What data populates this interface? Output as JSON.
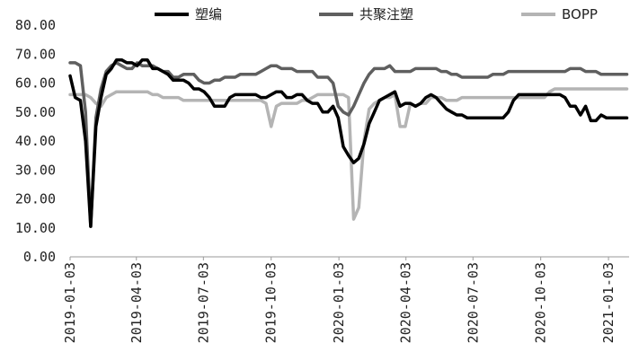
{
  "chart_data": {
    "type": "line",
    "title": "",
    "xlabel": "",
    "ylabel": "",
    "ylim": [
      0,
      80
    ],
    "yticks": [
      "0.00",
      "10.00",
      "20.00",
      "30.00",
      "40.00",
      "50.00",
      "60.00",
      "70.00",
      "80.00"
    ],
    "xticks": [
      "2019-01-03",
      "2019-04-03",
      "2019-07-03",
      "2019-10-03",
      "2020-01-03",
      "2020-04-03",
      "2020-07-03",
      "2020-10-03",
      "2021-01-03"
    ],
    "x_range": [
      "2019-01-03",
      "2021-01-31"
    ],
    "grid": false,
    "legend_position": "top",
    "x": [
      "2019-01-03",
      "2019-01-10",
      "2019-01-17",
      "2019-01-24",
      "2019-01-31",
      "2019-02-07",
      "2019-02-14",
      "2019-02-21",
      "2019-02-28",
      "2019-03-07",
      "2019-03-14",
      "2019-03-21",
      "2019-03-28",
      "2019-04-04",
      "2019-04-11",
      "2019-04-18",
      "2019-04-25",
      "2019-05-02",
      "2019-05-09",
      "2019-05-16",
      "2019-05-23",
      "2019-05-30",
      "2019-06-06",
      "2019-06-13",
      "2019-06-20",
      "2019-06-27",
      "2019-07-04",
      "2019-07-11",
      "2019-07-18",
      "2019-07-25",
      "2019-08-01",
      "2019-08-08",
      "2019-08-15",
      "2019-08-22",
      "2019-08-29",
      "2019-09-05",
      "2019-09-12",
      "2019-09-19",
      "2019-09-26",
      "2019-10-03",
      "2019-10-10",
      "2019-10-17",
      "2019-10-24",
      "2019-10-31",
      "2019-11-07",
      "2019-11-14",
      "2019-11-21",
      "2019-11-28",
      "2019-12-05",
      "2019-12-12",
      "2019-12-19",
      "2019-12-26",
      "2020-01-02",
      "2020-01-09",
      "2020-01-16",
      "2020-01-23",
      "2020-01-30",
      "2020-02-06",
      "2020-02-13",
      "2020-02-20",
      "2020-02-27",
      "2020-03-05",
      "2020-03-12",
      "2020-03-19",
      "2020-03-26",
      "2020-04-02",
      "2020-04-09",
      "2020-04-16",
      "2020-04-23",
      "2020-04-30",
      "2020-05-07",
      "2020-05-14",
      "2020-05-21",
      "2020-05-28",
      "2020-06-04",
      "2020-06-11",
      "2020-06-18",
      "2020-06-25",
      "2020-07-02",
      "2020-07-09",
      "2020-07-16",
      "2020-07-23",
      "2020-07-30",
      "2020-08-06",
      "2020-08-13",
      "2020-08-20",
      "2020-08-27",
      "2020-09-03",
      "2020-09-10",
      "2020-09-17",
      "2020-09-24",
      "2020-10-01",
      "2020-10-08",
      "2020-10-15",
      "2020-10-22",
      "2020-10-29",
      "2020-11-05",
      "2020-11-12",
      "2020-11-19",
      "2020-11-26",
      "2020-12-03",
      "2020-12-10",
      "2020-12-17",
      "2020-12-24",
      "2020-12-31",
      "2021-01-07",
      "2021-01-14",
      "2021-01-21",
      "2021-01-28"
    ],
    "series": [
      {
        "name": "塑编",
        "color": "#000000",
        "values": [
          62.5,
          55,
          54,
          40,
          10.5,
          45,
          55,
          63,
          65,
          68,
          68,
          67,
          67,
          66,
          68,
          68,
          65,
          65,
          64,
          63,
          61,
          61,
          61,
          60,
          58,
          58,
          57,
          55,
          52,
          52,
          52,
          55,
          56,
          56,
          56,
          56,
          56,
          55,
          55,
          56,
          57,
          57,
          55,
          55,
          56,
          56,
          54,
          53,
          53,
          50,
          50,
          52,
          48,
          38,
          35,
          32.5,
          34,
          39,
          46,
          50,
          54,
          55,
          56,
          57,
          52,
          53,
          53,
          52,
          53,
          55,
          56,
          55,
          53,
          51,
          50,
          49,
          49,
          48,
          48,
          48,
          48,
          48,
          48,
          48,
          48,
          50,
          54,
          56,
          56,
          56,
          56,
          56,
          56,
          56,
          56,
          56,
          55,
          52,
          52,
          49,
          52,
          47,
          47,
          49,
          48,
          48,
          48,
          48,
          48
        ]
      },
      {
        "name": "共聚注塑",
        "color": "#5f5f5f",
        "values": [
          67,
          67,
          66,
          50,
          10.5,
          48,
          58,
          64,
          66,
          67,
          66,
          65,
          65,
          67,
          66,
          66,
          66,
          65,
          64,
          64,
          62,
          62,
          63,
          63,
          63,
          61,
          60,
          60,
          61,
          61,
          62,
          62,
          62,
          63,
          63,
          63,
          63,
          64,
          65,
          66,
          66,
          65,
          65,
          65,
          64,
          64,
          64,
          64,
          62,
          62,
          62,
          60,
          52,
          50,
          49,
          52,
          56,
          60,
          63,
          65,
          65,
          65,
          66,
          64,
          64,
          64,
          64,
          65,
          65,
          65,
          65,
          65,
          64,
          64,
          63,
          63,
          62,
          62,
          62,
          62,
          62,
          62,
          63,
          63,
          63,
          64,
          64,
          64,
          64,
          64,
          64,
          64,
          64,
          64,
          64,
          64,
          64,
          65,
          65,
          65,
          64,
          64,
          64,
          63,
          63,
          63,
          63,
          63,
          63
        ]
      },
      {
        "name": "BOPP",
        "color": "#b4b4b4",
        "values": [
          56,
          56,
          56,
          56,
          55,
          53,
          52,
          55,
          56,
          57,
          57,
          57,
          57,
          57,
          57,
          57,
          56,
          56,
          55,
          55,
          55,
          55,
          54,
          54,
          54,
          54,
          54,
          54,
          54,
          54,
          54,
          54,
          54,
          54,
          54,
          54,
          54,
          54,
          53,
          45,
          52,
          53,
          53,
          53,
          53,
          54,
          54,
          55,
          56,
          56,
          56,
          56,
          56,
          56,
          55,
          13,
          17,
          40,
          51,
          53,
          54,
          55,
          55,
          56,
          45,
          45,
          53,
          52,
          53,
          53,
          55,
          55,
          55,
          54,
          54,
          54,
          55,
          55,
          55,
          55,
          55,
          55,
          55,
          55,
          55,
          55,
          55,
          55,
          55,
          55,
          55,
          55,
          55,
          57,
          58,
          58,
          58,
          58,
          58,
          58,
          58,
          58,
          58,
          58,
          58,
          58,
          58,
          58,
          58
        ]
      }
    ]
  }
}
